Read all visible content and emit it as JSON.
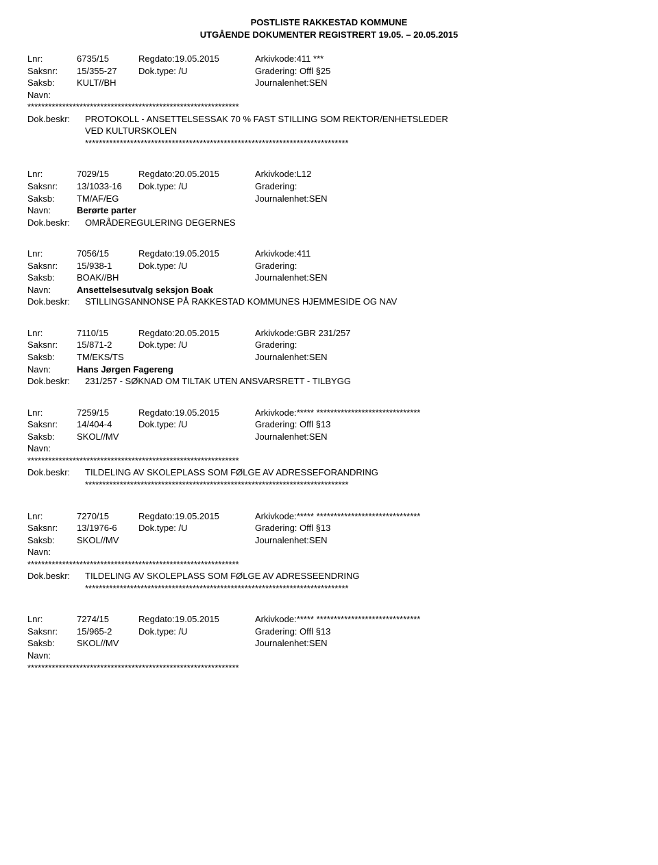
{
  "header": {
    "line1": "POSTLISTE RAKKESTAD KOMMUNE",
    "line2": "UTGÅENDE DOKUMENTER REGISTRERT 19.05. – 20.05.2015"
  },
  "labels": {
    "lnr": "Lnr:",
    "saksnr": "Saksnr:",
    "saksb": "Saksb:",
    "navn": "Navn:",
    "dokbeskr": "Dok.beskr:"
  },
  "entries": [
    {
      "lnr": "6735/15",
      "regdato": "Regdato:19.05.2015",
      "arkivkode": "Arkivkode:411 ***",
      "saksnr": "15/355-27",
      "doktype": "Dok.type: /U",
      "gradering": "Gradering: Offl §25",
      "saksb": "KULT//BH",
      "journal": "Journalenhet:SEN",
      "navn": "",
      "navnStars": "*************************************************************",
      "beskr1": "PROTOKOLL - ANSETTELSESSAK 70 % FAST STILLING SOM REKTOR/ENHETSLEDER",
      "beskr2": "VED KULTURSKOLEN",
      "beskrStars": "****************************************************************************"
    },
    {
      "lnr": "7029/15",
      "regdato": "Regdato:20.05.2015",
      "arkivkode": "Arkivkode:L12",
      "saksnr": "13/1033-16",
      "doktype": "Dok.type: /U",
      "gradering": "Gradering:",
      "saksb": "TM/AF/EG",
      "journal": "Journalenhet:SEN",
      "navn": "Berørte parter",
      "navnStars": "",
      "beskr1": "OMRÅDEREGULERING DEGERNES",
      "beskr2": "",
      "beskrStars": ""
    },
    {
      "lnr": "7056/15",
      "regdato": "Regdato:19.05.2015",
      "arkivkode": "Arkivkode:411",
      "saksnr": "15/938-1",
      "doktype": "Dok.type: /U",
      "gradering": "Gradering:",
      "saksb": "BOAK//BH",
      "journal": "Journalenhet:SEN",
      "navn": "Ansettelsesutvalg seksjon Boak",
      "navnStars": "",
      "beskr1": "STILLINGSANNONSE PÅ RAKKESTAD KOMMUNES HJEMMESIDE OG NAV",
      "beskr2": "",
      "beskrStars": ""
    },
    {
      "lnr": "7110/15",
      "regdato": "Regdato:20.05.2015",
      "arkivkode": "Arkivkode:GBR 231/257",
      "saksnr": "15/871-2",
      "doktype": "Dok.type: /U",
      "gradering": "Gradering:",
      "saksb": "TM/EKS/TS",
      "journal": "Journalenhet:SEN",
      "navn": "Hans Jørgen Fagereng",
      "navnStars": "",
      "beskr1": "231/257 - SØKNAD OM TILTAK UTEN ANSVARSRETT - TILBYGG",
      "beskr2": "",
      "beskrStars": ""
    },
    {
      "lnr": "7259/15",
      "regdato": "Regdato:19.05.2015",
      "arkivkode": "Arkivkode:***** ******************************",
      "saksnr": "14/404-4",
      "doktype": "Dok.type: /U",
      "gradering": "Gradering: Offl §13",
      "saksb": "SKOL//MV",
      "journal": "Journalenhet:SEN",
      "navn": "",
      "navnStars": "*************************************************************",
      "beskr1": "TILDELING AV SKOLEPLASS SOM FØLGE AV ADRESSEFORANDRING",
      "beskr2": "",
      "beskrStars": "****************************************************************************"
    },
    {
      "lnr": "7270/15",
      "regdato": "Regdato:19.05.2015",
      "arkivkode": "Arkivkode:***** ******************************",
      "saksnr": "13/1976-6",
      "doktype": "Dok.type: /U",
      "gradering": "Gradering: Offl §13",
      "saksb": "SKOL//MV",
      "journal": "Journalenhet:SEN",
      "navn": "",
      "navnStars": "*************************************************************",
      "beskr1": "TILDELING AV SKOLEPLASS SOM FØLGE AV ADRESSEENDRING",
      "beskr2": "",
      "beskrStars": "****************************************************************************"
    },
    {
      "lnr": "7274/15",
      "regdato": "Regdato:19.05.2015",
      "arkivkode": "Arkivkode:***** ******************************",
      "saksnr": "15/965-2",
      "doktype": "Dok.type: /U",
      "gradering": "Gradering: Offl §13",
      "saksb": "SKOL//MV",
      "journal": "Journalenhet:SEN",
      "navn": "",
      "navnStars": "*************************************************************",
      "beskr1": "",
      "beskr2": "",
      "beskrStars": "",
      "truncated": true
    }
  ]
}
